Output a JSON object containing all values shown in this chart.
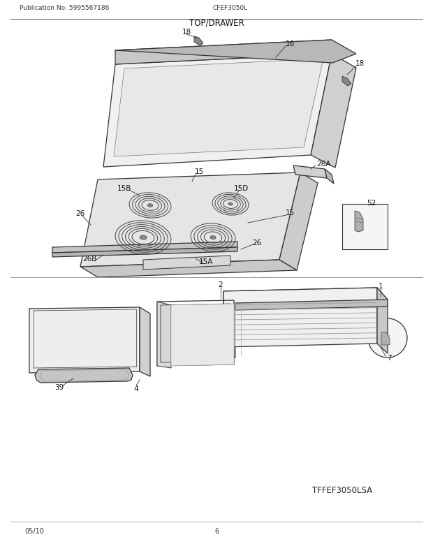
{
  "title": "TOP/DRAWER",
  "pub_no": "Publication No: 5995567186",
  "model": "CFEF3050L",
  "model_code": "TFFEF3050LSA",
  "date": "05/10",
  "page": "6",
  "bg_color": "#ffffff",
  "lc": "#333333",
  "lc_light": "#888888",
  "fc_glass": "#f5f5f5",
  "fc_dark": "#d0d0d0",
  "fc_mid": "#e0e0e0",
  "fc_frame": "#e8e8e8"
}
